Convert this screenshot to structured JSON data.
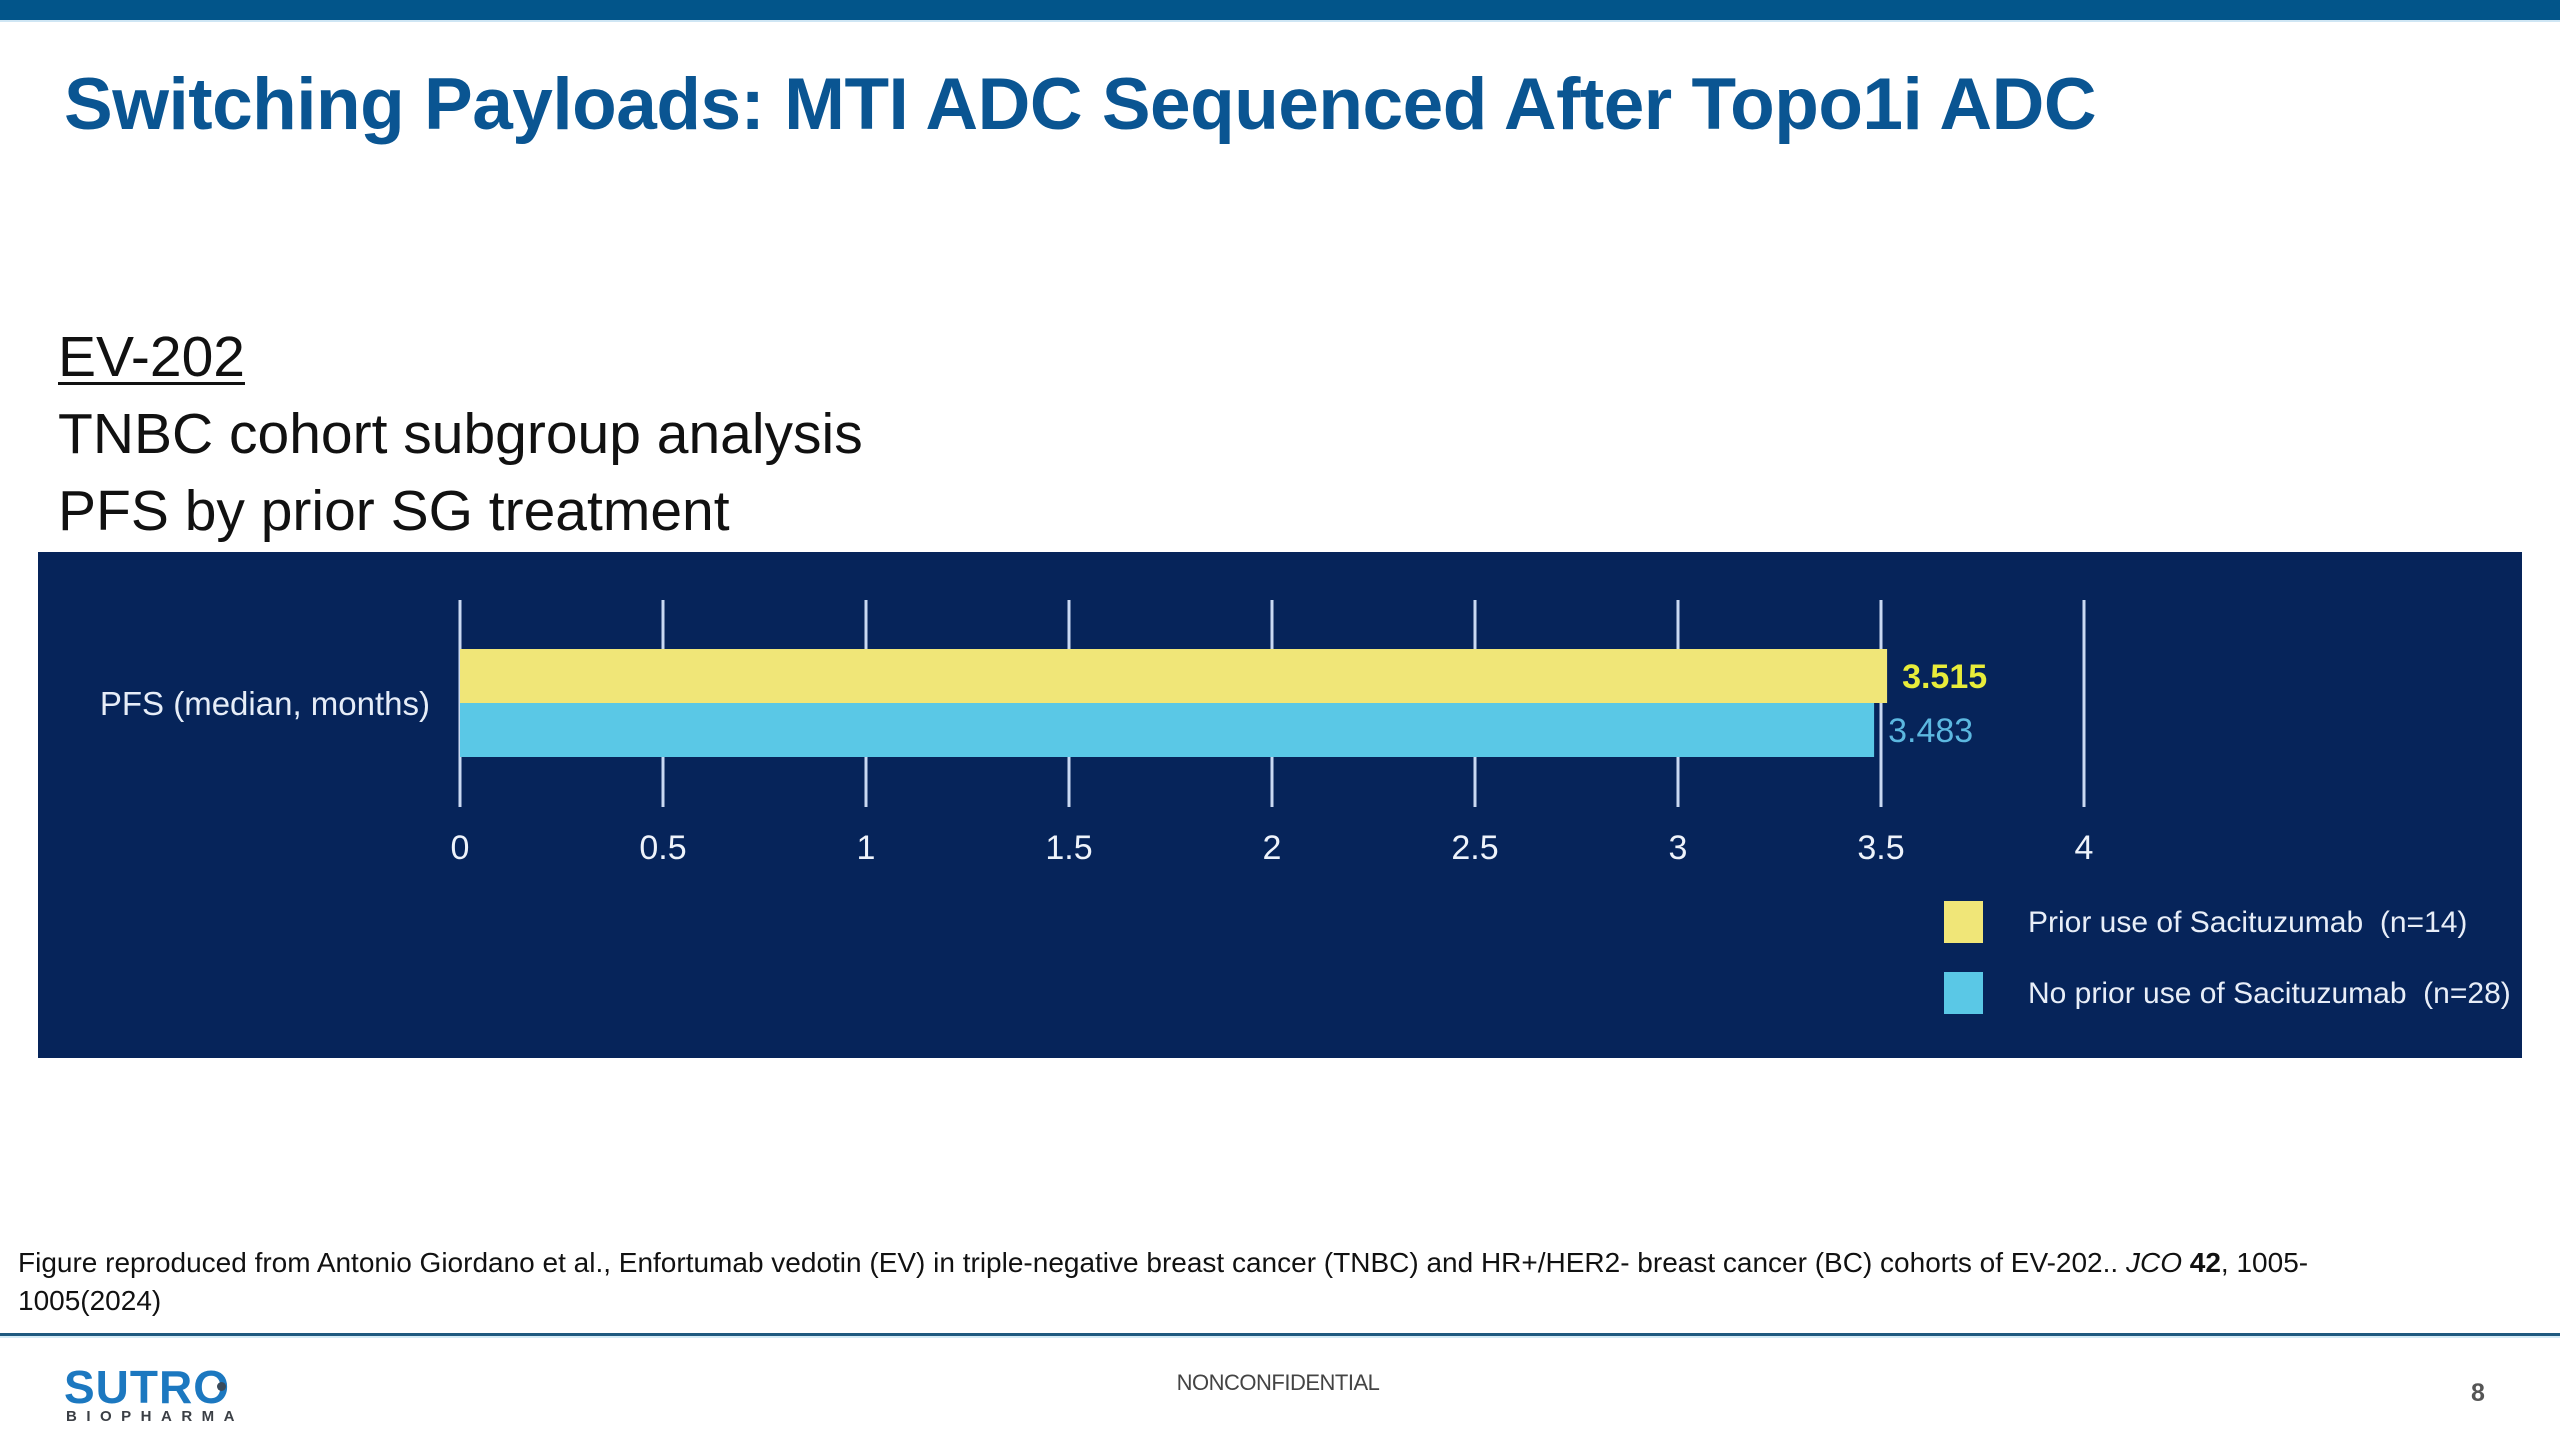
{
  "slide": {
    "title": "Switching Payloads:  MTI ADC Sequenced After Topo1i ADC",
    "subtitle_lines": {
      "study": "EV-202",
      "cohort": "TNBC cohort subgroup analysis",
      "endpoint": "PFS by prior SG treatment"
    },
    "footnote": {
      "text_main": "Figure reproduced from Antonio Giordano et al., Enfortumab vedotin (EV) in triple-negative breast cancer (TNBC) and HR+/HER2- breast cancer (BC) cohorts of EV-202.. ",
      "journal": "JCO",
      "volume": "42",
      "pages_year": ", 1005-1005(2024)"
    },
    "confidentiality": "NONCONFIDENTIAL",
    "page_number": "8",
    "logo": {
      "word": "SUTRO",
      "sub": "BIOPHARMA"
    },
    "colors": {
      "brand_blue": "#0a5592",
      "top_bar": "#02558a",
      "chart_background": "#06245a"
    }
  },
  "chart_data": {
    "type": "bar",
    "orientation": "horizontal",
    "title": "",
    "categories": [
      "PFS (median, months)"
    ],
    "series": [
      {
        "name": "Prior use of Sacituzumab  (n=14)",
        "values": [
          3.515
        ],
        "color": "#f0e678",
        "label_color": "#e8ec3a",
        "label": "3.515"
      },
      {
        "name": "No prior use of Sacituzumab  (n=28)",
        "values": [
          3.483
        ],
        "color": "#5ac8e6",
        "label_color": "#5cb8e0",
        "label": "3.483"
      }
    ],
    "xlabel": "",
    "ylabel": "",
    "xlim": [
      0,
      4
    ],
    "xticks": [
      0,
      0.5,
      1,
      1.5,
      2,
      2.5,
      3,
      3.5,
      4
    ],
    "xtick_labels": [
      "0",
      "0.5",
      "1",
      "1.5",
      "2",
      "2.5",
      "3",
      "3.5",
      "4"
    ],
    "grid": true,
    "legend_position": "bottom-right"
  }
}
